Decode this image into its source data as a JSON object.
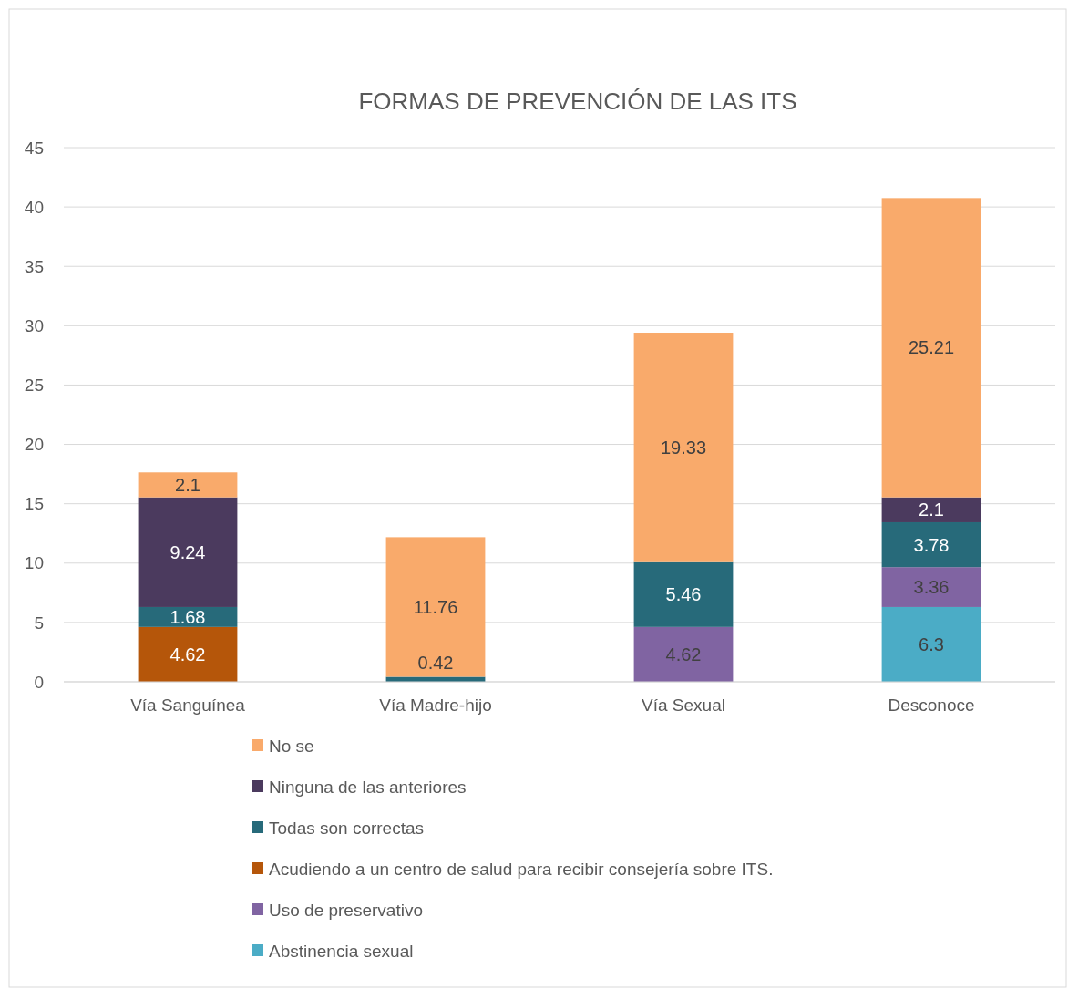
{
  "chart_data": {
    "type": "bar",
    "title": "FORMAS DE PREVENCIÓN DE LAS ITS",
    "categories": [
      "Vía Sanguínea",
      "Vía Madre-hijo",
      "Vía Sexual",
      "Desconoce"
    ],
    "stacked": true,
    "grid": "y",
    "legend": "bottom",
    "ylim": [
      0,
      45
    ],
    "yticks": [
      0,
      5,
      10,
      15,
      20,
      25,
      30,
      35,
      40,
      45
    ],
    "series": [
      {
        "name": "Abstinencia sexual",
        "color": "#4bacc6",
        "values": [
          0,
          0,
          0,
          6.3
        ],
        "value_labels": [
          null,
          null,
          null,
          "6.3"
        ]
      },
      {
        "name": "Uso de preservativo",
        "color": "#8064a2",
        "values": [
          0,
          0,
          4.62,
          3.36
        ],
        "value_labels": [
          null,
          null,
          "4.62",
          "3.36"
        ]
      },
      {
        "name": "Acudiendo a un centro de salud para recibir consejería sobre ITS.",
        "color": "#b5560a",
        "values": [
          4.62,
          0,
          0,
          0
        ],
        "value_labels": [
          "4.62",
          null,
          null,
          null
        ]
      },
      {
        "name": "Todas son correctas",
        "color": "#276a7a",
        "values": [
          1.68,
          0.42,
          5.46,
          3.78
        ],
        "value_labels": [
          "1.68",
          "0.42",
          "5.46",
          "3.78"
        ]
      },
      {
        "name": "Ninguna de las anteriores",
        "color": "#4b3a5e",
        "values": [
          9.24,
          0,
          0,
          2.1
        ],
        "value_labels": [
          "9.24",
          null,
          null,
          "2.1"
        ]
      },
      {
        "name": "No se",
        "color": "#f9aa6b",
        "values": [
          2.1,
          11.76,
          19.33,
          25.21
        ],
        "value_labels": [
          "2.1",
          "11.76",
          "19.33",
          "25.21"
        ]
      }
    ]
  }
}
